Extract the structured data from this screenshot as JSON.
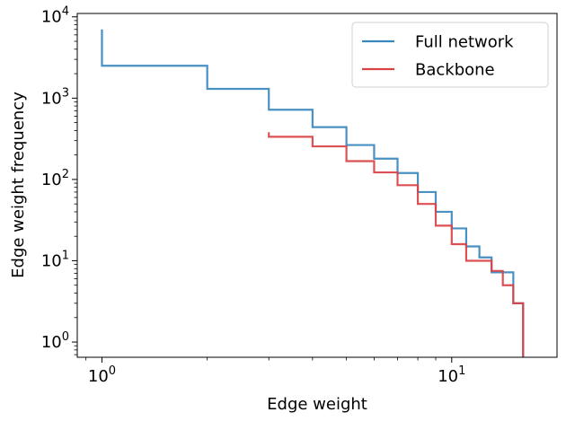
{
  "chart_data": {
    "type": "line",
    "step": "post",
    "xlabel": "Edge weight",
    "ylabel": "Edge weight frequency",
    "xscale": "log",
    "yscale": "log",
    "xlim": [
      0.85,
      20
    ],
    "ylim": [
      0.65,
      11000
    ],
    "x_major_ticks": [
      {
        "value": 1,
        "base": "10",
        "exp": "0"
      },
      {
        "value": 10,
        "base": "10",
        "exp": "1"
      }
    ],
    "y_major_ticks": [
      {
        "value": 1,
        "base": "10",
        "exp": "0"
      },
      {
        "value": 10,
        "base": "10",
        "exp": "1"
      },
      {
        "value": 100,
        "base": "10",
        "exp": "2"
      },
      {
        "value": 1000,
        "base": "10",
        "exp": "3"
      },
      {
        "value": 10000,
        "base": "10",
        "exp": "4"
      }
    ],
    "legend_position": "top-right",
    "series": [
      {
        "name": "Full network",
        "color": "#3a87be",
        "points": [
          [
            1,
            7000
          ],
          [
            1,
            2500
          ],
          [
            2,
            1300
          ],
          [
            3,
            720
          ],
          [
            4,
            440
          ],
          [
            5,
            265
          ],
          [
            6,
            180
          ],
          [
            7,
            120
          ],
          [
            8,
            70
          ],
          [
            9,
            40
          ],
          [
            10,
            25
          ],
          [
            11,
            15
          ],
          [
            12,
            11
          ],
          [
            13,
            7.2
          ],
          [
            15,
            3
          ],
          [
            16,
            2
          ],
          [
            16,
            0.1
          ]
        ]
      },
      {
        "name": "Backbone",
        "color": "#d94245",
        "points": [
          [
            3,
            380
          ],
          [
            3,
            335
          ],
          [
            4,
            255
          ],
          [
            5,
            168
          ],
          [
            6,
            122
          ],
          [
            7,
            85
          ],
          [
            8,
            50
          ],
          [
            9,
            27
          ],
          [
            10,
            16
          ],
          [
            11,
            10
          ],
          [
            13,
            7.5
          ],
          [
            14,
            5
          ],
          [
            15,
            3
          ],
          [
            16,
            2
          ],
          [
            16,
            0.1
          ]
        ]
      }
    ]
  }
}
